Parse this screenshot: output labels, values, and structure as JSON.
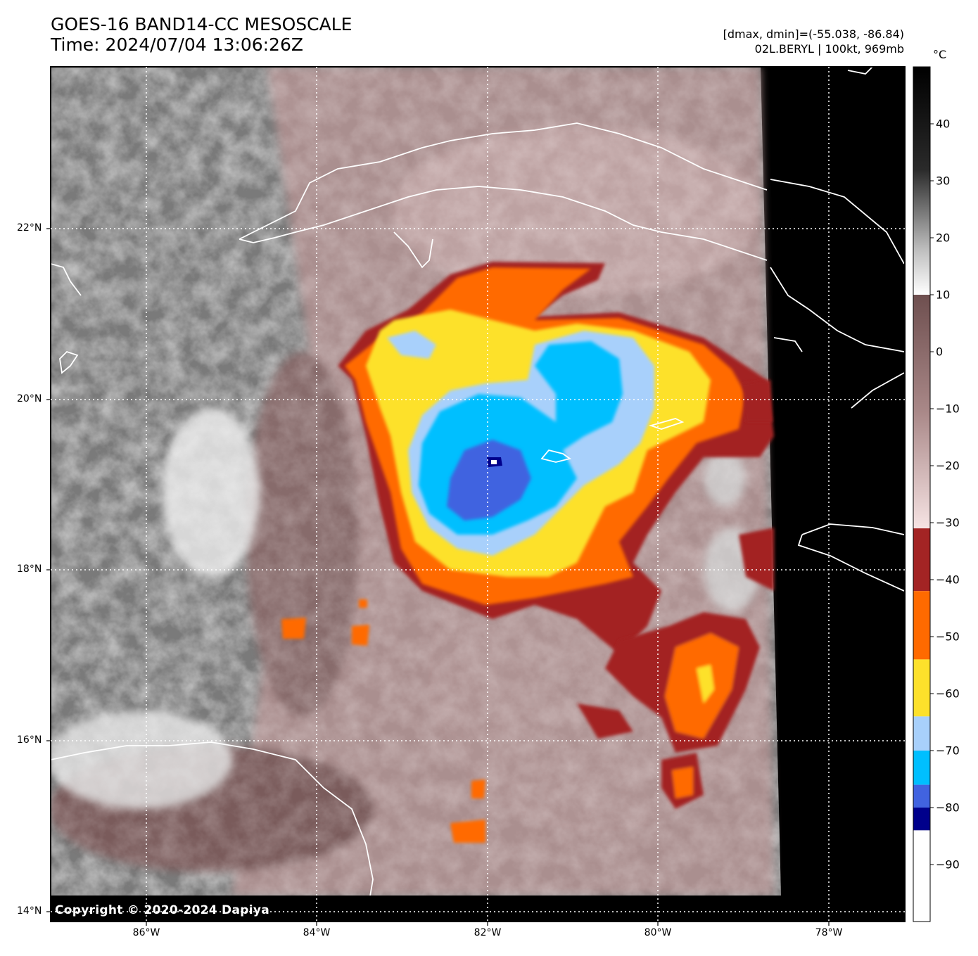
{
  "header": {
    "title_line1": "GOES-16 BAND14-CC MESOSCALE",
    "title_line2": "Time: 2024/07/04 13:06:26Z",
    "info_line1": "[dmax, dmin]=(-55.038, -86.84)",
    "info_line2": "02L.BERYL | 100kt, 969mb"
  },
  "map": {
    "lat_labels": [
      "22°N",
      "20°N",
      "18°N",
      "16°N",
      "14°N"
    ],
    "lon_labels": [
      "86°W",
      "84°W",
      "82°W",
      "80°W",
      "78°W"
    ],
    "storm_name": "02L.BERYL",
    "intensity": "100kt, 969mb",
    "copyright": "Copyright © 2020-2024 Dapiya"
  },
  "colorbar": {
    "unit": "°C",
    "ticks": [
      "40",
      "30",
      "20",
      "10",
      "0",
      "−10",
      "−20",
      "−30",
      "−40",
      "−50",
      "−60",
      "−70",
      "−80",
      "−90"
    ],
    "segments": [
      {
        "from": 50,
        "to": 10,
        "type": "grey"
      },
      {
        "from": 10,
        "to": -31,
        "type": "brown-pink"
      },
      {
        "from": -31,
        "to": -42,
        "color": "#a32424"
      },
      {
        "from": -42,
        "to": -54,
        "color": "#ff6a00"
      },
      {
        "from": -54,
        "to": -64,
        "color": "#fde12b"
      },
      {
        "from": -64,
        "to": -70,
        "color": "#a8d0fb"
      },
      {
        "from": -70,
        "to": -76,
        "color": "#00bfff"
      },
      {
        "from": -76,
        "to": -80,
        "color": "#4163e0"
      },
      {
        "from": -80,
        "to": -84,
        "color": "#00008b"
      },
      {
        "from": -84,
        "to": -100,
        "color": "#ffffff"
      }
    ]
  }
}
